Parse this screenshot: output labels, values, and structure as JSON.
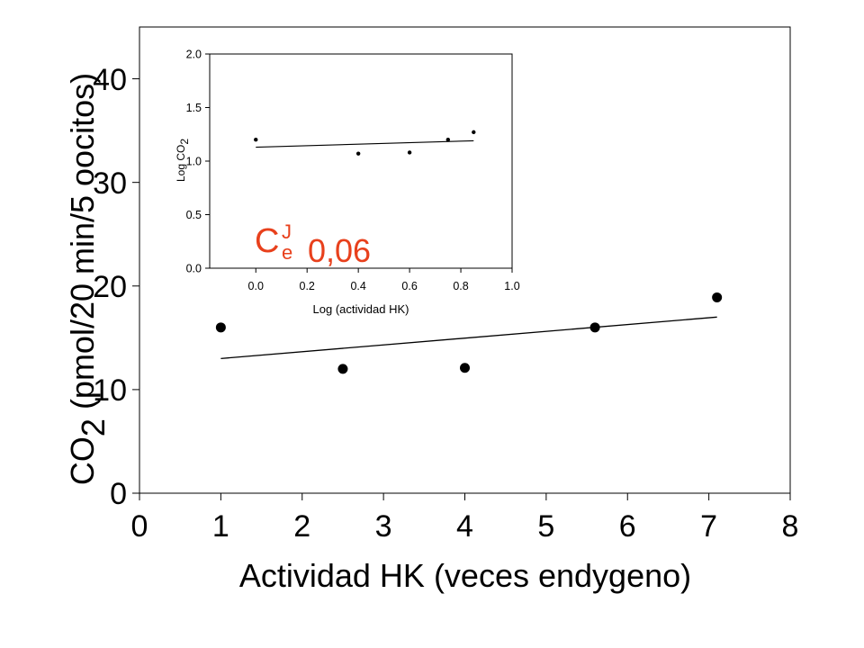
{
  "chart_data": [
    {
      "type": "scatter",
      "role": "main",
      "xlabel": "Actividad HK (veces endygeno)",
      "ylabel": "CO2 (pmol/20 min/5 oocitos)",
      "ylabel_main": "CO",
      "ylabel_sub": "2",
      "ylabel_rest": " (pmol/20 min/5 oocitos)",
      "xlim": [
        0,
        8
      ],
      "ylim": [
        0,
        45
      ],
      "xticks": [
        0,
        1,
        2,
        3,
        4,
        5,
        6,
        7,
        8
      ],
      "yticks": [
        0,
        10,
        20,
        30,
        40
      ],
      "xtick_labels": [
        "0",
        "1",
        "2",
        "3",
        "4",
        "5",
        "6",
        "7",
        "8"
      ],
      "ytick_labels": [
        "0",
        "10",
        "20",
        "30",
        "40"
      ],
      "grid": false,
      "series": [
        {
          "points": [
            {
              "x": 1.0,
              "y": 16.0
            },
            {
              "x": 2.5,
              "y": 12.0
            },
            {
              "x": 4.0,
              "y": 12.1
            },
            {
              "x": 5.6,
              "y": 16.0
            },
            {
              "x": 7.1,
              "y": 18.9
            }
          ],
          "fit_line": [
            {
              "x": 1.0,
              "y": 13.0
            },
            {
              "x": 7.1,
              "y": 17.0
            }
          ]
        }
      ]
    },
    {
      "type": "scatter",
      "role": "inset",
      "xlabel": "Log (actividad HK)",
      "ylabel": "Log CO2",
      "ylabel_main": "Log CO",
      "ylabel_sub": "2",
      "xlim": [
        -0.18,
        1.0
      ],
      "ylim": [
        0.0,
        2.0
      ],
      "xticks": [
        0.0,
        0.2,
        0.4,
        0.6,
        0.8,
        1.0
      ],
      "yticks": [
        0.0,
        0.5,
        1.0,
        1.5,
        2.0
      ],
      "xtick_labels": [
        "0.0",
        "0.2",
        "0.4",
        "0.6",
        "0.8",
        "1.0"
      ],
      "ytick_labels": [
        "0.0",
        "0.5",
        "1.0",
        "1.5",
        "2.0"
      ],
      "grid": false,
      "series": [
        {
          "points": [
            {
              "x": 0.0,
              "y": 1.2
            },
            {
              "x": 0.4,
              "y": 1.07
            },
            {
              "x": 0.6,
              "y": 1.08
            },
            {
              "x": 0.75,
              "y": 1.2
            },
            {
              "x": 0.85,
              "y": 1.27
            }
          ],
          "fit_line": [
            {
              "x": 0.0,
              "y": 1.13
            },
            {
              "x": 0.85,
              "y": 1.19
            }
          ]
        }
      ]
    }
  ],
  "annotation": {
    "symbol": "C",
    "superscript": "J",
    "subscript": "e",
    "value": "0,06",
    "color": "#e8401c"
  },
  "colors": {
    "axis": "#000000",
    "points": "#000000",
    "fit_line": "#000000"
  }
}
